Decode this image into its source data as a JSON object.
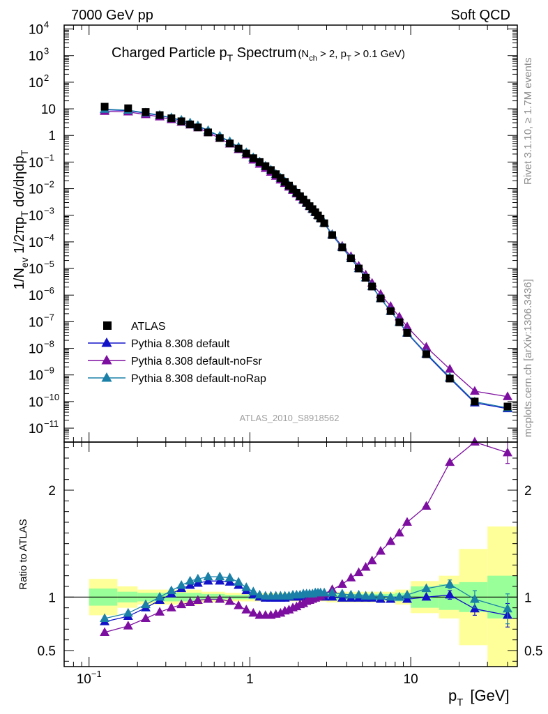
{
  "header": {
    "left": "7000 GeV pp",
    "right": "Soft QCD",
    "side_rivet": "Rivet 3.1.10, ≥ 1.7M events",
    "side_mcplots": "mcplots.cern.ch [arXiv:1306.3436]",
    "analysis_id": "ATLAS_2010_S8918562"
  },
  "title": {
    "main": "Charged Particle p",
    "main_sub": "T",
    "main_after": " Spectrum",
    "cond_open": "(N",
    "cond_sub1": "ch",
    "cond_mid": " > 2, p",
    "cond_sub2": "T",
    "cond_close": " > 0.1 GeV)"
  },
  "axes": {
    "ylabel_main": "1/N_ev 1/2πp_T dσ/dηdp_T",
    "ylabel_ratio": "Ratio to ATLAS",
    "xlabel": "p",
    "xlabel_sub": "T",
    "xlabel_unit": "[GeV]"
  },
  "legend": [
    {
      "name": "ATLAS",
      "color": "#000000",
      "marker": "square"
    },
    {
      "name": "Pythia 8.308 default",
      "color": "#1212c8",
      "marker": "triangle"
    },
    {
      "name": "Pythia 8.308 default-noFsr",
      "color": "#7d0fa0",
      "marker": "triangle"
    },
    {
      "name": "Pythia 8.308 default-noRap",
      "color": "#1a80a8",
      "marker": "triangle"
    }
  ],
  "colors": {
    "band_inner": "#99ff99",
    "band_outer": "#ffff99"
  },
  "chart_data": {
    "type": "scatter",
    "x_scale": "log",
    "y_scale_main": "log",
    "xlim": [
      0.07,
      46
    ],
    "ylim_main": [
      3e-12,
      14000.0
    ],
    "ylim_ratio": [
      0.35,
      2.45
    ],
    "x": [
      0.125,
      0.175,
      0.225,
      0.275,
      0.325,
      0.375,
      0.425,
      0.475,
      0.55,
      0.65,
      0.75,
      0.85,
      0.95,
      1.05,
      1.15,
      1.25,
      1.35,
      1.45,
      1.55,
      1.65,
      1.75,
      1.85,
      1.95,
      2.05,
      2.15,
      2.25,
      2.35,
      2.45,
      2.55,
      2.65,
      2.75,
      2.9,
      3.25,
      3.75,
      4.25,
      4.75,
      5.25,
      5.75,
      6.5,
      7.5,
      8.5,
      9.5,
      12.5,
      17.5,
      25,
      40
    ],
    "atlas": [
      12,
      10.5,
      7.6,
      5.8,
      4.4,
      3.4,
      2.6,
      2.0,
      1.3,
      0.8,
      0.5,
      0.32,
      0.21,
      0.14,
      0.1,
      0.07,
      0.05,
      0.035,
      0.025,
      0.018,
      0.013,
      0.0096,
      0.007,
      0.0052,
      0.0039,
      0.0029,
      0.0022,
      0.0017,
      0.0013,
      0.00098,
      0.00075,
      0.0005,
      0.00018,
      6.2e-05,
      2.4e-05,
      1e-05,
      4.5e-06,
      2.1e-06,
      7.5e-07,
      2.5e-07,
      9.5e-08,
      3.8e-08,
      6e-09,
      7.3e-10,
      1e-10,
      6.5e-11
    ],
    "ratio_series": [
      {
        "name": "Pythia 8.308 default",
        "values": [
          0.77,
          0.82,
          0.9,
          0.97,
          1.03,
          1.08,
          1.11,
          1.13,
          1.15,
          1.15,
          1.14,
          1.11,
          1.06,
          1.02,
          1.0,
          0.99,
          0.99,
          0.99,
          0.99,
          0.99,
          1.0,
          1.0,
          1.0,
          1.0,
          1.0,
          1.0,
          1.0,
          1.01,
          1.01,
          1.01,
          1.01,
          1.0,
          1.0,
          0.99,
          0.99,
          0.99,
          0.99,
          0.99,
          0.98,
          0.98,
          1.0,
          0.98,
          1.0,
          1.02,
          0.89,
          0.83
        ]
      },
      {
        "name": "Pythia 8.308 default-noFsr",
        "values": [
          0.67,
          0.73,
          0.8,
          0.86,
          0.9,
          0.93,
          0.95,
          0.97,
          0.98,
          0.98,
          0.96,
          0.92,
          0.88,
          0.85,
          0.83,
          0.83,
          0.83,
          0.84,
          0.85,
          0.87,
          0.88,
          0.9,
          0.91,
          0.93,
          0.94,
          0.96,
          0.97,
          0.98,
          0.99,
          1.0,
          1.01,
          1.03,
          1.07,
          1.12,
          1.18,
          1.23,
          1.28,
          1.34,
          1.43,
          1.52,
          1.6,
          1.7,
          1.85,
          2.26,
          2.45,
          2.35
        ]
      },
      {
        "name": "Pythia 8.308 default-noRap",
        "values": [
          0.8,
          0.85,
          0.93,
          1.0,
          1.06,
          1.11,
          1.15,
          1.17,
          1.19,
          1.19,
          1.18,
          1.14,
          1.09,
          1.05,
          1.02,
          1.01,
          1.01,
          1.01,
          1.01,
          1.01,
          1.01,
          1.02,
          1.02,
          1.02,
          1.03,
          1.03,
          1.03,
          1.03,
          1.04,
          1.04,
          1.04,
          1.04,
          1.04,
          1.03,
          1.02,
          1.02,
          1.01,
          1.01,
          1.01,
          1.0,
          1.0,
          1.02,
          1.08,
          1.12,
          0.98,
          0.89
        ]
      }
    ],
    "ratio_errors": {
      "Pythia 8.308 default": [
        0,
        0,
        0,
        0,
        0,
        0,
        0,
        0,
        0,
        0,
        0,
        0,
        0,
        0,
        0,
        0,
        0,
        0,
        0,
        0,
        0,
        0,
        0,
        0,
        0,
        0,
        0,
        0,
        0,
        0,
        0,
        0,
        0,
        0,
        0,
        0,
        0,
        0,
        0,
        0,
        0,
        0,
        0,
        0.04,
        0.06,
        0.11
      ],
      "Pythia 8.308 default-noFsr": [
        0,
        0,
        0,
        0,
        0,
        0,
        0,
        0,
        0,
        0,
        0,
        0,
        0,
        0,
        0,
        0,
        0,
        0,
        0,
        0,
        0,
        0,
        0,
        0,
        0,
        0,
        0,
        0,
        0,
        0,
        0,
        0,
        0,
        0,
        0,
        0,
        0,
        0,
        0,
        0,
        0,
        0,
        0,
        0,
        0,
        0.1
      ],
      "Pythia 8.308 default-noRap": [
        0,
        0,
        0,
        0,
        0,
        0,
        0,
        0,
        0,
        0,
        0,
        0,
        0,
        0,
        0,
        0,
        0,
        0,
        0,
        0,
        0,
        0,
        0,
        0,
        0,
        0,
        0,
        0,
        0,
        0,
        0,
        0,
        0,
        0,
        0,
        0,
        0,
        0,
        0,
        0,
        0,
        0,
        0,
        0.04,
        0.08,
        0.14
      ]
    },
    "band_bins": [
      {
        "lo": 0.1,
        "hi": 0.15,
        "inner": 0.08,
        "outer": 0.17
      },
      {
        "lo": 0.15,
        "hi": 0.2,
        "inner": 0.05,
        "outer": 0.1
      },
      {
        "lo": 0.2,
        "hi": 0.5,
        "inner": 0.04,
        "outer": 0.07
      },
      {
        "lo": 0.5,
        "hi": 0.7,
        "inner": 0.03,
        "outer": 0.05
      },
      {
        "lo": 0.7,
        "hi": 3.0,
        "inner": 0.02,
        "outer": 0.04
      },
      {
        "lo": 3.0,
        "hi": 8.0,
        "inner": 0.03,
        "outer": 0.05
      },
      {
        "lo": 8.0,
        "hi": 10.0,
        "inner": 0.04,
        "outer": 0.07
      },
      {
        "lo": 10.0,
        "hi": 15.0,
        "inner": 0.1,
        "outer": 0.15
      },
      {
        "lo": 15.0,
        "hi": 20.0,
        "inner": 0.12,
        "outer": 0.2
      },
      {
        "lo": 20.0,
        "hi": 30.0,
        "inner": 0.14,
        "outer": 0.45
      },
      {
        "lo": 30.0,
        "hi": 50.0,
        "inner": 0.2,
        "outer": 0.66
      }
    ],
    "x_ticks": [
      {
        "v": 0.1,
        "label": "10",
        "exp": "−1"
      },
      {
        "v": 1,
        "label": "1",
        "exp": ""
      },
      {
        "v": 10,
        "label": "10",
        "exp": ""
      }
    ],
    "y_ticks_main": [
      {
        "p": 4,
        "label": "10",
        "exp": "4"
      },
      {
        "p": 3,
        "label": "10",
        "exp": "3"
      },
      {
        "p": 2,
        "label": "10",
        "exp": "2"
      },
      {
        "p": 1,
        "label": "10",
        "exp": ""
      },
      {
        "p": 0,
        "label": "1",
        "exp": ""
      },
      {
        "p": -1,
        "label": "10",
        "exp": "−1"
      },
      {
        "p": -2,
        "label": "10",
        "exp": "−2"
      },
      {
        "p": -3,
        "label": "10",
        "exp": "−3"
      },
      {
        "p": -4,
        "label": "10",
        "exp": "−4"
      },
      {
        "p": -5,
        "label": "10",
        "exp": "−5"
      },
      {
        "p": -6,
        "label": "10",
        "exp": "−6"
      },
      {
        "p": -7,
        "label": "10",
        "exp": "−7"
      },
      {
        "p": -8,
        "label": "10",
        "exp": "−8"
      },
      {
        "p": -9,
        "label": "10",
        "exp": "−9"
      },
      {
        "p": -10,
        "label": "10",
        "exp": "−10"
      },
      {
        "p": -11,
        "label": "10",
        "exp": "−11"
      }
    ],
    "y_ticks_ratio": [
      {
        "v": 2,
        "label": "2"
      },
      {
        "v": 1,
        "label": "1"
      },
      {
        "v": 0.5,
        "label": "0.5"
      }
    ]
  }
}
